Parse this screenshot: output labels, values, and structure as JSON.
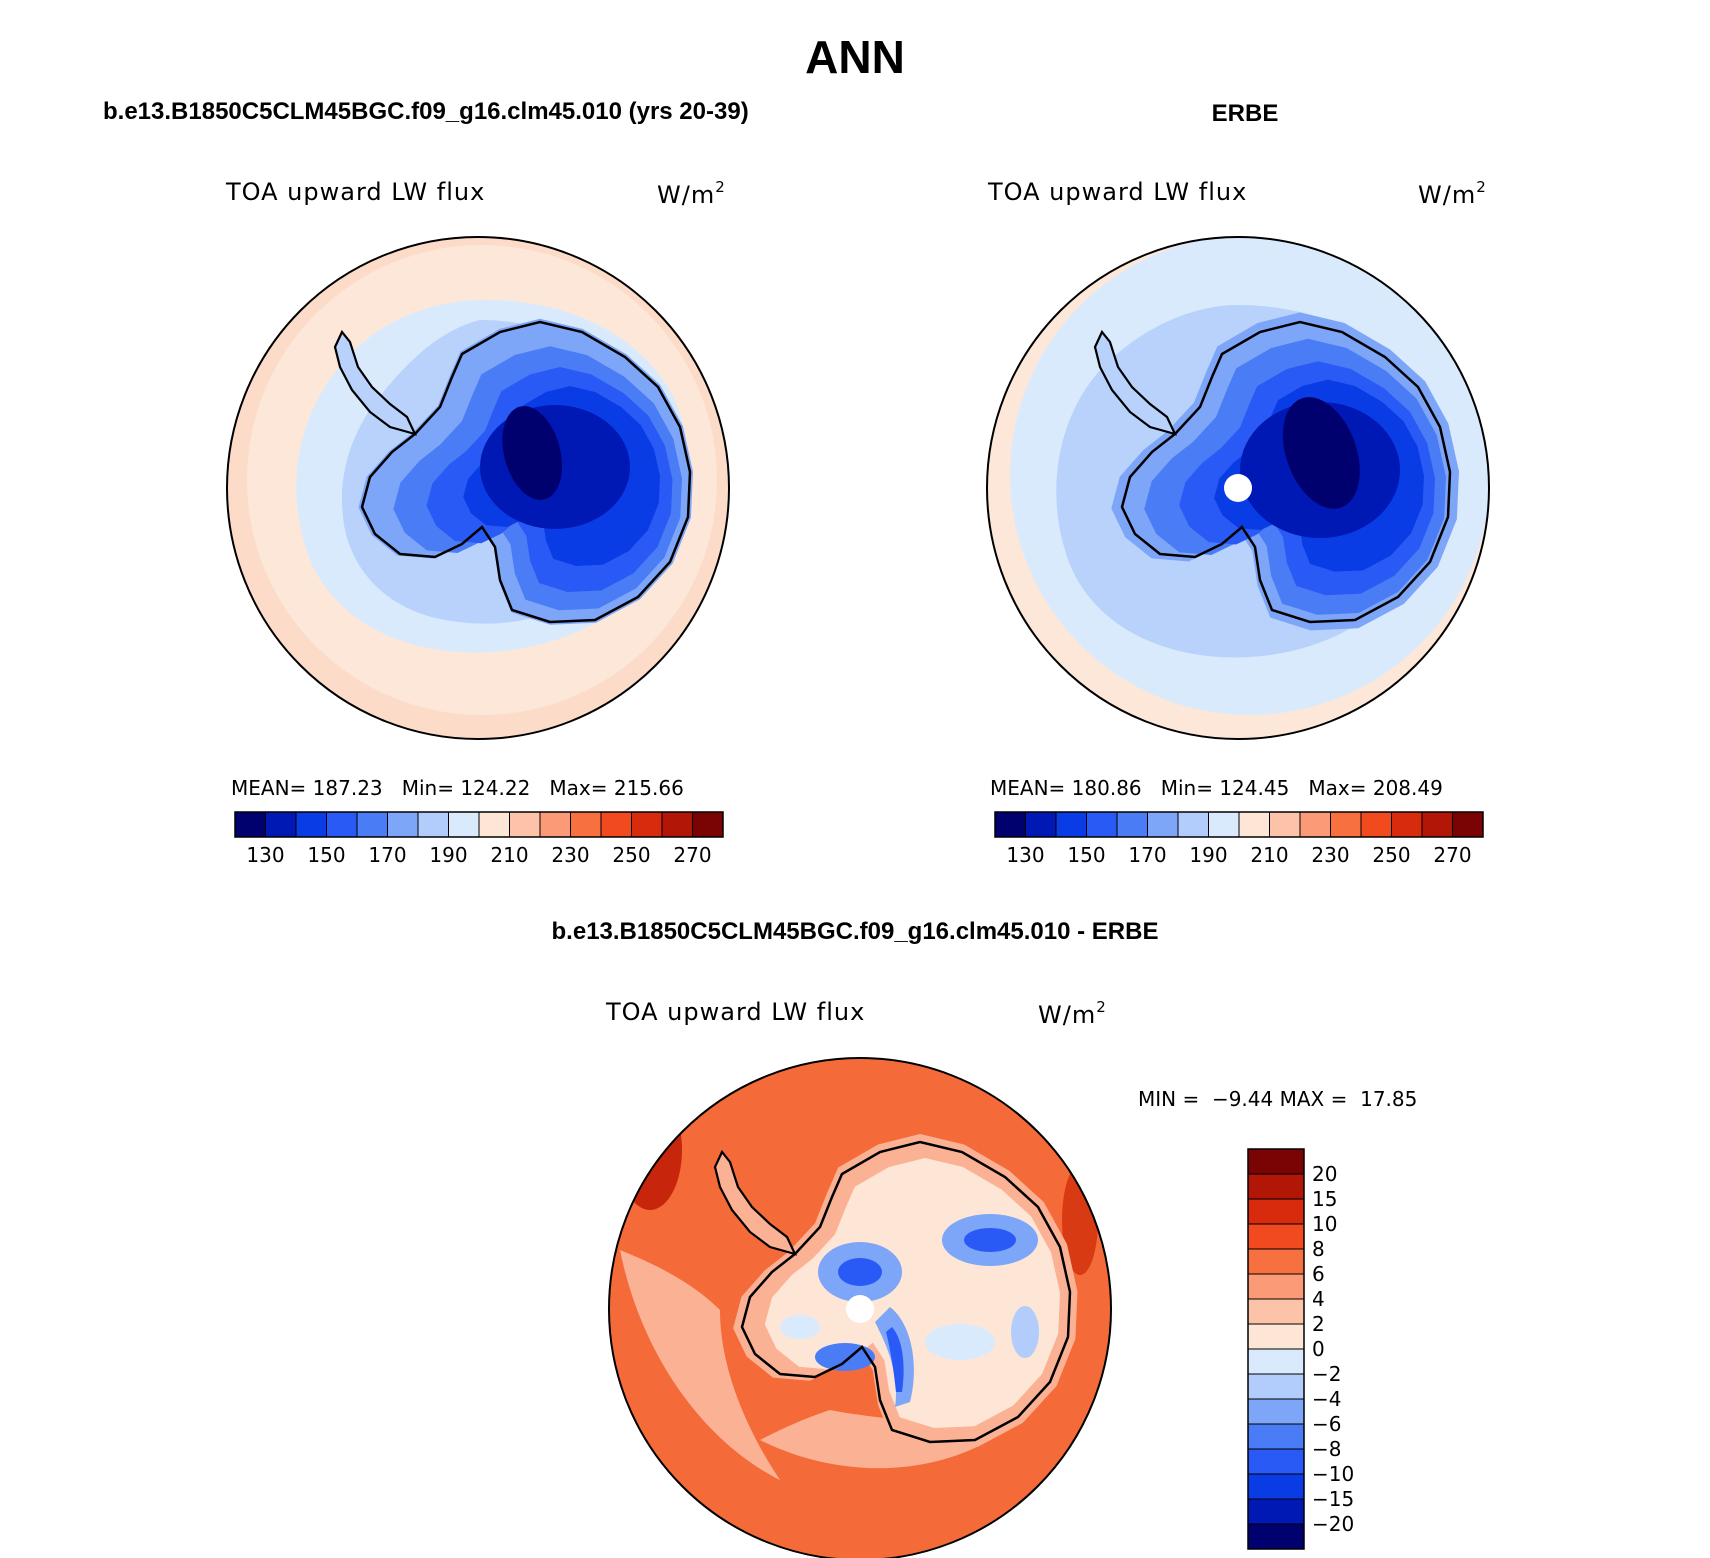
{
  "title": "ANN",
  "panels": [
    {
      "id": "model",
      "heading": "b.e13.B1850C5CLM45BGC.f09_g16.clm45.010 (yrs 20-39)",
      "variable": "TOA upward LW flux",
      "units_base": "W/m",
      "units_exp": "2",
      "stats": {
        "mean_label": "MEAN=",
        "mean": "187.23",
        "min_label": "Min=",
        "min": "124.22",
        "max_label": "Max=",
        "max": "215.66"
      }
    },
    {
      "id": "obs",
      "heading": "ERBE",
      "variable": "TOA upward LW flux",
      "units_base": "W/m",
      "units_exp": "2",
      "stats": {
        "mean_label": "MEAN=",
        "mean": "180.86",
        "min_label": "Min=",
        "min": "124.45",
        "max_label": "Max=",
        "max": "208.49"
      }
    },
    {
      "id": "diff",
      "heading": "b.e13.B1850C5CLM45BGC.f09_g16.clm45.010 - ERBE",
      "variable": "TOA upward LW flux",
      "units_base": "W/m",
      "units_exp": "2",
      "stats": {
        "min_label": "MIN =",
        "min": "−9.44",
        "max_label": "MAX =",
        "max": "17.85"
      }
    }
  ],
  "colorbar_abs": {
    "tick_labels": [
      "130",
      "150",
      "170",
      "190",
      "210",
      "230",
      "250",
      "270"
    ],
    "colors": [
      "#00006e",
      "#0018b4",
      "#0a3ce6",
      "#2a5af5",
      "#4a7cf5",
      "#7ea6f8",
      "#b2cdfb",
      "#daeafd",
      "#fde6d6",
      "#fdc3a8",
      "#fb9a76",
      "#f7703f",
      "#f04a1e",
      "#d82a0c",
      "#b21607",
      "#7a0403"
    ]
  },
  "colorbar_diff": {
    "tick_labels": [
      "20",
      "15",
      "10",
      "8",
      "6",
      "4",
      "2",
      "0",
      "−2",
      "−4",
      "−6",
      "−8",
      "−10",
      "−15",
      "−20"
    ],
    "colors": [
      "#7a0403",
      "#b21607",
      "#d82a0c",
      "#f04a1e",
      "#f7703f",
      "#fb9a76",
      "#fdc3a8",
      "#fde6d6",
      "#daeafd",
      "#b2cdfb",
      "#7ea6f8",
      "#4a7cf5",
      "#2a5af5",
      "#0a3ce6",
      "#0018b4",
      "#00006e"
    ]
  },
  "map_colors": {
    "ring_warm": "#fcdcc8",
    "ring_light": "#fde7d8",
    "ocean_pale_blue": "#daeafd",
    "ocean_blue": "#b8d2fb",
    "l1": "#7ea6f8",
    "l2": "#4a7cf5",
    "l3": "#2a5af5",
    "l4": "#0a3ce6",
    "l5": "#0018b4",
    "core": "#00006e",
    "diff_ocean": "#f46a38",
    "diff_light": "#fbb294",
    "diff_pale": "#fde6d6",
    "diff_dark": "#c8260c"
  }
}
